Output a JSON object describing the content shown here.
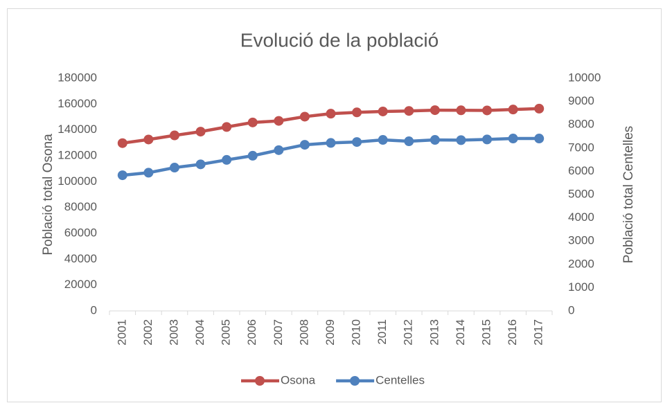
{
  "chart_data": {
    "type": "line",
    "title": "Evolució de la població",
    "y_label": "Població total Osona",
    "y2_label": "Població total Centelles",
    "categories": [
      "2001",
      "2002",
      "2003",
      "2004",
      "2005",
      "2006",
      "2007",
      "2008",
      "2009",
      "2010",
      "2011",
      "2012",
      "2013",
      "2014",
      "2015",
      "2016",
      "2017"
    ],
    "series": [
      {
        "name": "Osona",
        "color": "#c0504d",
        "values": [
          129800,
          132600,
          135800,
          138700,
          142300,
          145800,
          147000,
          150300,
          152600,
          153600,
          154300,
          154700,
          155300,
          155200,
          155100,
          155800,
          156500
        ]
      },
      {
        "name": "Centelles",
        "color": "#4f81bd",
        "axis": "y2",
        "values": [
          5830,
          5940,
          6160,
          6300,
          6490,
          6670,
          6910,
          7140,
          7220,
          7260,
          7350,
          7290,
          7350,
          7340,
          7370,
          7410,
          7410
        ]
      }
    ],
    "ylim": [
      0,
      180000
    ],
    "yticks": [
      0,
      20000,
      40000,
      60000,
      80000,
      100000,
      120000,
      140000,
      160000,
      180000
    ],
    "y2lim": [
      0,
      10000
    ],
    "y2ticks": [
      0,
      1000,
      2000,
      3000,
      4000,
      5000,
      6000,
      7000,
      8000,
      9000,
      10000
    ],
    "grid": false,
    "legend": "bottom"
  }
}
